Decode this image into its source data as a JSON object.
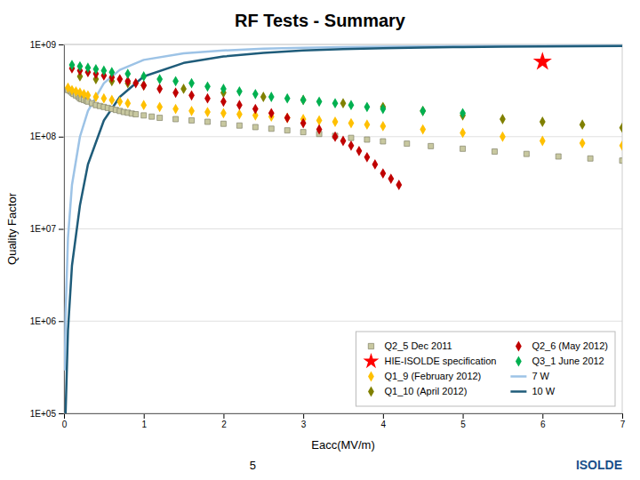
{
  "chart_data": {
    "type": "scatter",
    "title": "RF Tests - Summary",
    "x_label": "Eacc(MV/m)",
    "y_label": "Quality Factor",
    "log": "y",
    "grid": true,
    "legend": "lower right",
    "xlim": [
      0,
      7
    ],
    "xticks": [
      0,
      1,
      2,
      3,
      4,
      5,
      6,
      7
    ],
    "ylim": [
      100000.0,
      1000000000.0
    ],
    "yticks": [
      {
        "value": 100000.0,
        "label": "1E+05"
      },
      {
        "value": 1000000.0,
        "label": "1E+06"
      },
      {
        "value": 10000000.0,
        "label": "1E+07"
      },
      {
        "value": 100000000.0,
        "label": "1E+08"
      },
      {
        "value": 1000000000.0,
        "label": "1E+09"
      }
    ],
    "annotations": [
      {
        "text": "5"
      },
      {
        "text": "ISOLDE"
      }
    ],
    "series": [
      {
        "name": "Q2_5 Dec 2011",
        "type": "scatter",
        "marker": "square",
        "color": "#c8c8a0",
        "x": [
          0.05,
          0.08,
          0.1,
          0.12,
          0.15,
          0.18,
          0.2,
          0.22,
          0.25,
          0.28,
          0.3,
          0.35,
          0.4,
          0.45,
          0.5,
          0.55,
          0.6,
          0.65,
          0.7,
          0.75,
          0.8,
          0.85,
          0.9,
          1.0,
          1.1,
          1.2,
          1.4,
          1.6,
          1.8,
          2.0,
          2.2,
          2.4,
          2.6,
          2.8,
          3.0,
          3.2,
          3.4,
          3.6,
          3.8,
          4.0,
          4.3,
          4.6,
          5.0,
          5.4,
          5.8,
          6.2,
          6.6,
          7.0
        ],
        "values": [
          320000000.0,
          310000000.0,
          300000000.0,
          290000000.0,
          280000000.0,
          270000000.0,
          260000000.0,
          255000000.0,
          250000000.0,
          245000000.0,
          240000000.0,
          230000000.0,
          220000000.0,
          215000000.0,
          210000000.0,
          205000000.0,
          200000000.0,
          195000000.0,
          190000000.0,
          185000000.0,
          182000000.0,
          178000000.0,
          175000000.0,
          170000000.0,
          165000000.0,
          160000000.0,
          155000000.0,
          150000000.0,
          145000000.0,
          138000000.0,
          132000000.0,
          127000000.0,
          122000000.0,
          117000000.0,
          112000000.0,
          107000000.0,
          102000000.0,
          97000000.0,
          93000000.0,
          89000000.0,
          84000000.0,
          79000000.0,
          74000000.0,
          69000000.0,
          65000000.0,
          61000000.0,
          58000000.0,
          55000000.0
        ]
      },
      {
        "name": "HIE-ISOLDE specification",
        "type": "scatter",
        "marker": "star",
        "color": "#FF0000",
        "x": [
          6.0
        ],
        "values": [
          650000000.0
        ]
      },
      {
        "name": "Q1_9 (February 2012)",
        "type": "scatter",
        "marker": "diamond",
        "color": "#FFC000",
        "x": [
          0.05,
          0.1,
          0.15,
          0.2,
          0.25,
          0.3,
          0.4,
          0.5,
          0.6,
          0.7,
          0.8,
          1.0,
          1.2,
          1.4,
          1.6,
          1.8,
          2.0,
          2.2,
          2.4,
          2.6,
          2.8,
          3.0,
          3.2,
          3.4,
          3.6,
          3.8,
          4.0,
          4.5,
          5.0,
          5.5,
          6.0,
          6.5,
          7.0
        ],
        "values": [
          340000000.0,
          320000000.0,
          310000000.0,
          300000000.0,
          290000000.0,
          280000000.0,
          270000000.0,
          260000000.0,
          250000000.0,
          240000000.0,
          230000000.0,
          220000000.0,
          210000000.0,
          200000000.0,
          190000000.0,
          185000000.0,
          180000000.0,
          175000000.0,
          170000000.0,
          165000000.0,
          160000000.0,
          155000000.0,
          150000000.0,
          145000000.0,
          140000000.0,
          135000000.0,
          130000000.0,
          120000000.0,
          110000000.0,
          100000000.0,
          90000000.0,
          85000000.0,
          80000000.0
        ]
      },
      {
        "name": "Q1_10 (April 2012)",
        "type": "scatter",
        "marker": "diamond",
        "color": "#808000",
        "x": [
          0.2,
          0.4,
          0.6,
          0.8,
          1.0,
          1.5,
          2.0,
          2.5,
          3.0,
          3.5,
          4.0,
          4.5,
          5.0,
          5.5,
          6.0,
          6.5,
          7.0
        ],
        "values": [
          450000000.0,
          420000000.0,
          400000000.0,
          380000000.0,
          360000000.0,
          330000000.0,
          300000000.0,
          270000000.0,
          250000000.0,
          230000000.0,
          210000000.0,
          190000000.0,
          170000000.0,
          155000000.0,
          145000000.0,
          135000000.0,
          125000000.0
        ]
      },
      {
        "name": "Q2_6 (May 2012)",
        "type": "scatter",
        "marker": "diamond",
        "color": "#C00000",
        "x": [
          0.1,
          0.2,
          0.3,
          0.4,
          0.5,
          0.6,
          0.7,
          0.8,
          0.9,
          1.0,
          1.2,
          1.4,
          1.6,
          1.8,
          2.0,
          2.2,
          2.4,
          2.6,
          2.8,
          3.0,
          3.2,
          3.4,
          3.5,
          3.6,
          3.7,
          3.8,
          3.9,
          4.0,
          4.1,
          4.2
        ],
        "values": [
          550000000.0,
          520000000.0,
          500000000.0,
          480000000.0,
          460000000.0,
          440000000.0,
          420000000.0,
          400000000.0,
          380000000.0,
          360000000.0,
          330000000.0,
          300000000.0,
          280000000.0,
          260000000.0,
          240000000.0,
          220000000.0,
          200000000.0,
          180000000.0,
          160000000.0,
          140000000.0,
          120000000.0,
          100000000.0,
          90000000.0,
          80000000.0,
          70000000.0,
          60000000.0,
          50000000.0,
          40000000.0,
          35000000.0,
          30000000.0
        ]
      },
      {
        "name": "Q3_1 June 2012",
        "type": "scatter",
        "marker": "diamond",
        "color": "#00B050",
        "x": [
          0.1,
          0.2,
          0.3,
          0.4,
          0.5,
          0.6,
          0.8,
          1.0,
          1.2,
          1.4,
          1.6,
          1.8,
          2.0,
          2.2,
          2.4,
          2.6,
          2.8,
          3.0,
          3.2,
          3.4,
          3.6,
          3.8,
          4.0,
          4.5,
          5.0
        ],
        "values": [
          600000000.0,
          580000000.0,
          560000000.0,
          540000000.0,
          520000000.0,
          500000000.0,
          480000000.0,
          450000000.0,
          420000000.0,
          400000000.0,
          380000000.0,
          350000000.0,
          330000000.0,
          310000000.0,
          290000000.0,
          270000000.0,
          260000000.0,
          250000000.0,
          240000000.0,
          230000000.0,
          220000000.0,
          210000000.0,
          200000000.0,
          190000000.0,
          180000000.0
        ]
      },
      {
        "name": "7 W",
        "type": "line",
        "color": "#9DC3E6",
        "x": [
          0.01,
          0.02,
          0.05,
          0.1,
          0.2,
          0.3,
          0.5,
          0.7,
          1.0,
          1.5,
          2.0,
          2.5,
          3.0,
          3.5,
          4.0,
          4.5,
          5.0,
          5.5,
          6.0,
          6.5,
          7.0
        ],
        "values": [
          300000.0,
          1200000.0,
          8000000.0,
          30000000.0,
          100000000.0,
          190000000.0,
          380000000.0,
          530000000.0,
          680000000.0,
          800000000.0,
          860000000.0,
          900000000.0,
          920000000.0,
          935000000.0,
          945000000.0,
          952000000.0,
          957000000.0,
          961000000.0,
          964000000.0,
          967000000.0,
          969000000.0
        ]
      },
      {
        "name": "10 W",
        "type": "line",
        "color": "#1F5C7A",
        "x": [
          0.02,
          0.05,
          0.1,
          0.2,
          0.3,
          0.5,
          0.7,
          1.0,
          1.5,
          2.0,
          2.5,
          3.0,
          3.5,
          4.0,
          4.5,
          5.0,
          5.5,
          6.0,
          6.5,
          7.0
        ],
        "values": [
          100000.0,
          800000.0,
          4000000.0,
          18000000.0,
          50000000.0,
          150000000.0,
          270000000.0,
          450000000.0,
          630000000.0,
          740000000.0,
          810000000.0,
          860000000.0,
          890000000.0,
          910000000.0,
          925000000.0,
          937000000.0,
          945000000.0,
          952000000.0,
          957000000.0,
          961000000.0
        ]
      }
    ]
  }
}
